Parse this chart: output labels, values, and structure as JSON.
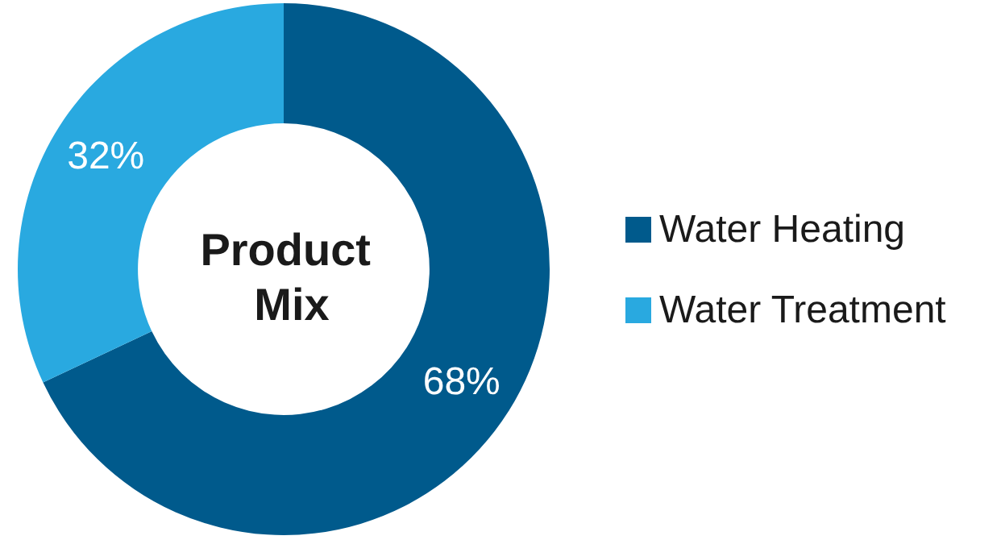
{
  "chart_data": {
    "type": "donut",
    "title": "Product Mix",
    "categories": [
      "Water Heating",
      "Water Treatment"
    ],
    "values": [
      68,
      32
    ],
    "colors": [
      "#005a8c",
      "#29a9e0"
    ],
    "value_labels": [
      "68%",
      "32%"
    ],
    "legend": "right"
  }
}
